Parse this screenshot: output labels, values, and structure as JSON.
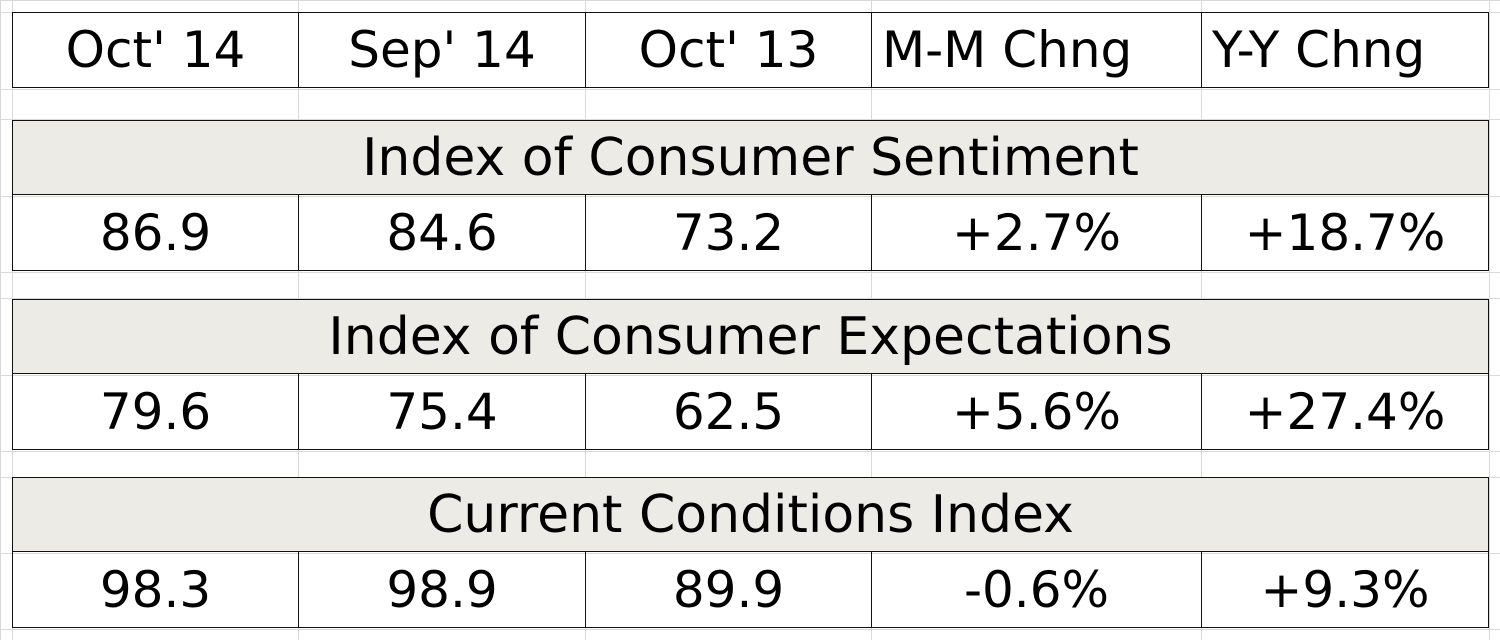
{
  "header": [
    "Oct' 14",
    "Sep' 14",
    "Oct' 13",
    "M-M Chng",
    "Y-Y Chng"
  ],
  "sections": [
    {
      "title": "Index of Consumer Sentiment",
      "values": [
        "86.9",
        "84.6",
        "73.2",
        "+2.7%",
        "+18.7%"
      ]
    },
    {
      "title": "Index of Consumer Expectations",
      "values": [
        "79.6",
        "75.4",
        "62.5",
        "+5.6%",
        "+27.4%"
      ]
    },
    {
      "title": "Current Conditions Index",
      "values": [
        "98.3",
        "98.9",
        "89.9",
        "-0.6%",
        "+9.3%"
      ]
    }
  ],
  "colors": {
    "title_band": "#ecebe5",
    "grid": "#d9d9d9",
    "border": "#111111"
  }
}
